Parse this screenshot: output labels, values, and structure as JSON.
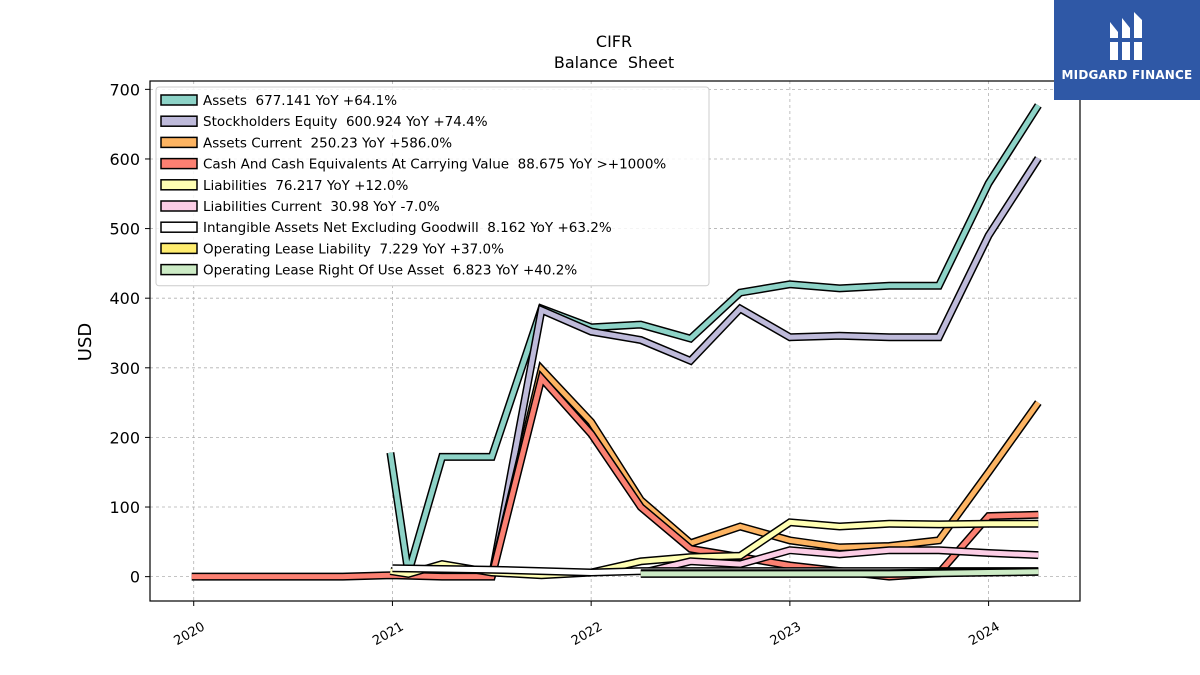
{
  "chart_data": {
    "type": "line",
    "title": "CIFR",
    "subtitle": "Balance  Sheet",
    "ylabel": "USD",
    "xlabel": "",
    "xlim": [
      2019.78,
      2024.46
    ],
    "ylim": [
      -35,
      712
    ],
    "x_ticks": [
      2020,
      2021,
      2022,
      2023,
      2024
    ],
    "x_tick_labels": [
      "2020",
      "2021",
      "2022",
      "2023",
      "2024"
    ],
    "y_ticks": [
      0,
      100,
      200,
      300,
      400,
      500,
      600,
      700
    ],
    "y_tick_labels": [
      "0",
      "100",
      "200",
      "300",
      "400",
      "500",
      "600",
      "700"
    ],
    "grid": true,
    "legend_position": "top-left",
    "series": [
      {
        "name": "Assets",
        "legend": "Assets  677.141 YoY +64.1%",
        "color": "#8dd3c7",
        "x": [
          2020.99,
          2021.08,
          2021.25,
          2021.5,
          2021.75,
          2022.0,
          2022.25,
          2022.5,
          2022.75,
          2023.0,
          2023.25,
          2023.5,
          2023.75,
          2024.0,
          2024.25
        ],
        "y": [
          178,
          5,
          172,
          172,
          385,
          358,
          362,
          342,
          408,
          420,
          414,
          418,
          418,
          565,
          677
        ]
      },
      {
        "name": "Stockholders Equity",
        "legend": "Stockholders Equity  600.924 YoY +74.4%",
        "color": "#bebada",
        "x": [
          2021.5,
          2021.75,
          2022.0,
          2022.25,
          2022.5,
          2022.75,
          2023.0,
          2023.25,
          2023.5,
          2023.75,
          2024.0,
          2024.25
        ],
        "y": [
          0,
          383,
          352,
          340,
          310,
          385,
          344,
          346,
          344,
          344,
          490,
          601
        ]
      },
      {
        "name": "Assets Current",
        "legend": "Assets Current  250.23 YoY +586.0%",
        "color": "#fdb462",
        "x": [
          2021.5,
          2021.75,
          2022.0,
          2022.25,
          2022.5,
          2022.75,
          2023.0,
          2023.25,
          2023.5,
          2023.75,
          2024.0,
          2024.25
        ],
        "y": [
          0,
          298,
          222,
          110,
          48,
          72,
          52,
          42,
          44,
          52,
          150,
          250
        ]
      },
      {
        "name": "Cash And Cash Equivalents At Carrying Value",
        "legend": "Cash And Cash Equivalents At Carrying Value  88.675 YoY >+1000%",
        "color": "#fb8072",
        "x": [
          2019.99,
          2020.75,
          2021.0,
          2021.25,
          2021.5,
          2021.75,
          2022.0,
          2022.25,
          2022.5,
          2022.75,
          2023.0,
          2023.25,
          2023.5,
          2023.75,
          2024.0,
          2024.25
        ],
        "y": [
          0,
          0,
          2,
          0,
          0,
          285,
          205,
          100,
          40,
          28,
          16,
          8,
          0,
          5,
          87,
          89
        ]
      },
      {
        "name": "Liabilities",
        "legend": "Liabilities  76.217 YoY +12.0%",
        "color": "#ffffb3",
        "x": [
          2020.99,
          2021.08,
          2021.25,
          2021.5,
          2021.75,
          2022.0,
          2022.25,
          2022.5,
          2022.75,
          2023.0,
          2023.25,
          2023.5,
          2023.75,
          2024.0,
          2024.25
        ],
        "y": [
          8,
          4,
          18,
          6,
          2,
          6,
          22,
          28,
          30,
          78,
          72,
          76,
          75,
          76,
          76
        ]
      },
      {
        "name": "Liabilities Current",
        "legend": "Liabilities Current  30.98 YoY -7.0%",
        "color": "#fccde5",
        "x": [
          2022.25,
          2022.5,
          2022.75,
          2023.0,
          2023.25,
          2023.5,
          2023.75,
          2024.0,
          2024.25
        ],
        "y": [
          5,
          22,
          18,
          38,
          32,
          38,
          38,
          34,
          31
        ]
      },
      {
        "name": "Intangible Assets Net Excluding Goodwill",
        "legend": "Intangible Assets Net Excluding Goodwill  8.162 YoY +63.2%",
        "color": "#ffffff",
        "x": [
          2021.0,
          2021.5,
          2022.0,
          2022.25,
          2022.5,
          2022.75,
          2023.0,
          2023.25,
          2023.5,
          2023.75,
          2024.0,
          2024.25
        ],
        "y": [
          12,
          10,
          6,
          8,
          8,
          8,
          8,
          8,
          8,
          8,
          8,
          8
        ]
      },
      {
        "name": "Operating Lease Liability",
        "legend": "Operating Lease Liability  7.229 YoY +37.0%",
        "color": "#ffed6f",
        "x": [
          2022.25,
          2022.5,
          2022.75,
          2023.0,
          2023.25,
          2023.5,
          2023.75,
          2024.0,
          2024.25
        ],
        "y": [
          5,
          5,
          5,
          5,
          5,
          5,
          6,
          7,
          7
        ]
      },
      {
        "name": "Operating Lease Right Of Use Asset",
        "legend": "Operating Lease Right Of Use Asset  6.823 YoY +40.2%",
        "color": "#ccebc5",
        "x": [
          2022.25,
          2022.5,
          2022.75,
          2023.0,
          2023.25,
          2023.5,
          2023.75,
          2024.0,
          2024.25
        ],
        "y": [
          4,
          4,
          4,
          4,
          4,
          4,
          5,
          6,
          7
        ]
      }
    ]
  },
  "logo": {
    "text": "MIDGARD FINANCE",
    "icon": "midgard-logo-icon",
    "background": "#2f58a6"
  }
}
